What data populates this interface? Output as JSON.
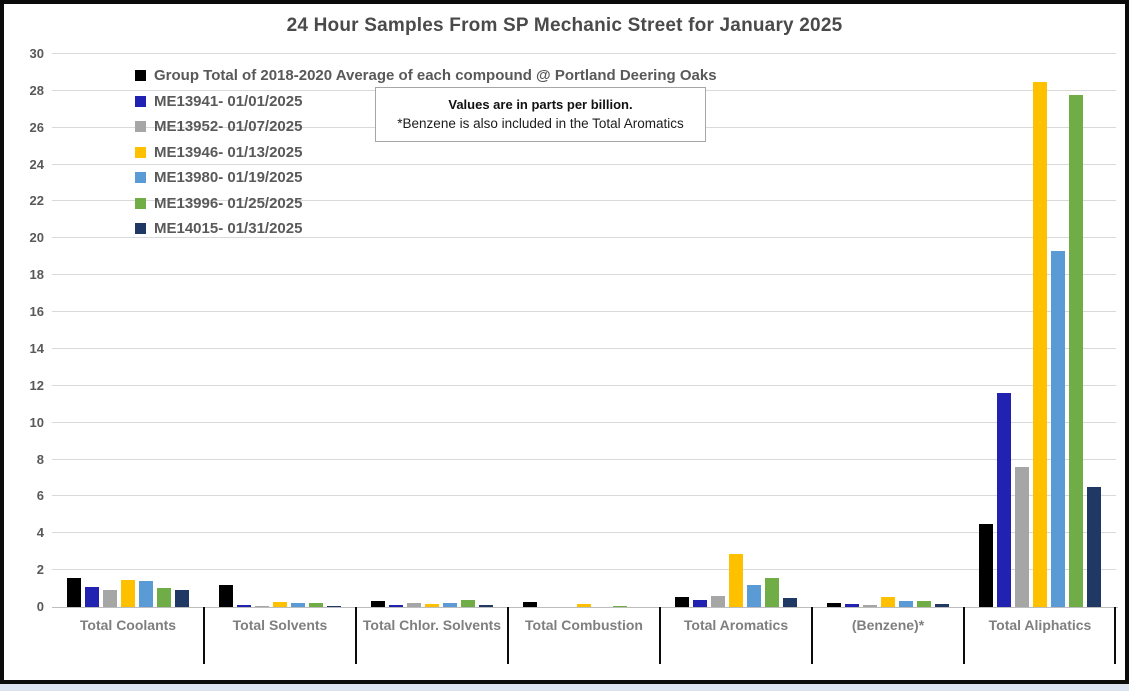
{
  "chart_data": {
    "type": "bar",
    "title": "24 Hour Samples From SP Mechanic Street for January 2025",
    "xlabel": "",
    "ylabel": "",
    "units": "parts per billion",
    "ylim": [
      0,
      30
    ],
    "ytick_step": 2,
    "grid": true,
    "legend_position": "inside-top-left",
    "note": {
      "line1": "Values are in parts per billion.",
      "line2": "*Benzene is also included in the Total Aromatics"
    },
    "categories": [
      "Total Coolants",
      "Total Solvents",
      "Total Chlor. Solvents",
      "Total Combustion",
      "Total Aromatics",
      "(Benzene)*",
      "Total Aliphatics"
    ],
    "series": [
      {
        "name": "Group Total of 2018-2020 Average of each compound @ Portland Deering Oaks",
        "color": "#000000",
        "values": [
          1.55,
          1.2,
          0.35,
          0.25,
          0.55,
          0.2,
          4.5
        ]
      },
      {
        "name": "ME13941- 01/01/2025",
        "color": "#2222B2",
        "values": [
          1.1,
          0.1,
          0.12,
          0,
          0.4,
          0.15,
          11.6
        ]
      },
      {
        "name": "ME13952- 01/07/2025",
        "color": "#A6A6A6",
        "values": [
          0.9,
          0.07,
          0.2,
          0,
          0.6,
          0.1,
          7.6
        ]
      },
      {
        "name": "ME13946- 01/13/2025",
        "color": "#FFC000",
        "values": [
          1.45,
          0.25,
          0.17,
          0.15,
          2.85,
          0.55,
          28.5
        ]
      },
      {
        "name": "ME13980- 01/19/2025",
        "color": "#5B9BD5",
        "values": [
          1.4,
          0.2,
          0.2,
          0,
          1.2,
          0.3,
          19.3
        ]
      },
      {
        "name": "ME13996- 01/25/2025",
        "color": "#70AD47",
        "values": [
          1.05,
          0.2,
          0.4,
          0.08,
          1.55,
          0.3,
          27.8
        ]
      },
      {
        "name": "ME14015- 01/31/2025",
        "color": "#1F3864",
        "values": [
          0.95,
          0.05,
          0.12,
          0,
          0.5,
          0.15,
          6.5
        ]
      }
    ]
  }
}
